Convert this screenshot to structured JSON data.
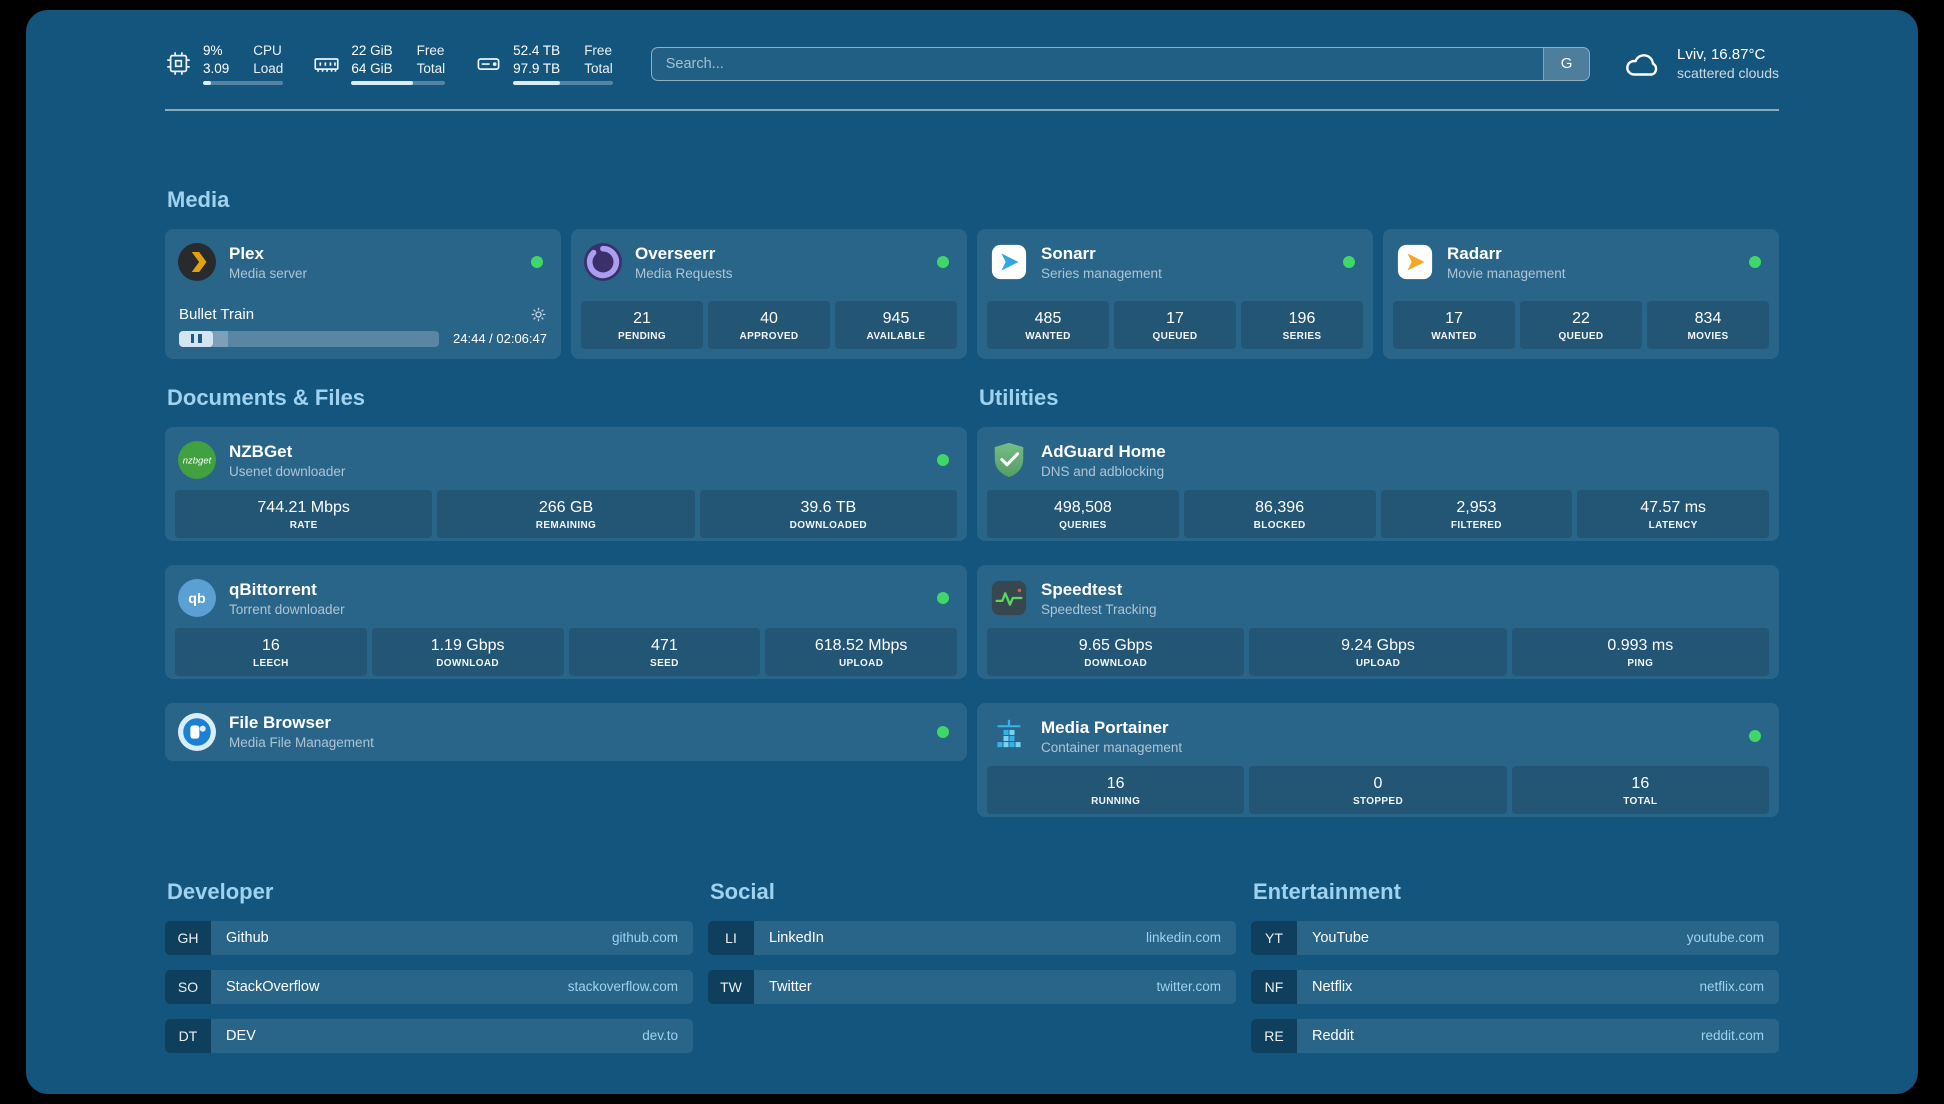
{
  "theme": {
    "background": "#14557e",
    "heading_color": "#9fd2ef",
    "status_green": "#3fd768",
    "link_color": "#9fd2ef"
  },
  "header": {
    "monitors": [
      {
        "icon": "cpu-icon",
        "rows": [
          {
            "value": "9%",
            "label": "CPU"
          },
          {
            "value": "3.09",
            "label": "Load"
          }
        ],
        "progress": 10
      },
      {
        "icon": "memory-icon",
        "rows": [
          {
            "value": "22 GiB",
            "label": "Free"
          },
          {
            "value": "64 GiB",
            "label": "Total"
          }
        ],
        "progress": 66
      },
      {
        "icon": "disk-icon",
        "rows": [
          {
            "value": "52.4 TB",
            "label": "Free"
          },
          {
            "value": "97.9 TB",
            "label": "Total"
          }
        ],
        "progress": 47
      }
    ],
    "search": {
      "placeholder": "Search...",
      "button_label": "G"
    },
    "weather": {
      "icon": "cloud-icon",
      "location": "Lviv, 16.87°C",
      "condition": "scattered clouds"
    }
  },
  "sections": {
    "media": {
      "title": "Media",
      "plex": {
        "icon": "plex-icon",
        "name": "Plex",
        "desc": "Media server",
        "status": "online",
        "now_playing": "Bullet Train",
        "elapsed": "24:44 / 02:06:47",
        "progress": 19
      },
      "overseerr": {
        "icon": "overseerr-icon",
        "name": "Overseerr",
        "desc": "Media Requests",
        "status": "online",
        "stats": [
          {
            "value": "21",
            "label": "PENDING"
          },
          {
            "value": "40",
            "label": "APPROVED"
          },
          {
            "value": "945",
            "label": "AVAILABLE"
          }
        ]
      },
      "sonarr": {
        "icon": "sonarr-icon",
        "name": "Sonarr",
        "desc": "Series management",
        "status": "online",
        "stats": [
          {
            "value": "485",
            "label": "WANTED"
          },
          {
            "value": "17",
            "label": "QUEUED"
          },
          {
            "value": "196",
            "label": "SERIES"
          }
        ]
      },
      "radarr": {
        "icon": "radarr-icon",
        "name": "Radarr",
        "desc": "Movie management",
        "status": "online",
        "stats": [
          {
            "value": "17",
            "label": "WANTED"
          },
          {
            "value": "22",
            "label": "QUEUED"
          },
          {
            "value": "834",
            "label": "MOVIES"
          }
        ]
      }
    },
    "documents": {
      "title": "Documents & Files",
      "nzbget": {
        "icon": "nzbget-icon",
        "name": "NZBGet",
        "desc": "Usenet downloader",
        "status": "online",
        "stats": [
          {
            "value": "744.21 Mbps",
            "label": "RATE"
          },
          {
            "value": "266 GB",
            "label": "REMAINING"
          },
          {
            "value": "39.6 TB",
            "label": "DOWNLOADED"
          }
        ]
      },
      "qbittorrent": {
        "icon": "qbittorrent-icon",
        "name": "qBittorrent",
        "desc": "Torrent downloader",
        "status": "online",
        "stats": [
          {
            "value": "16",
            "label": "LEECH"
          },
          {
            "value": "1.19 Gbps",
            "label": "DOWNLOAD"
          },
          {
            "value": "471",
            "label": "SEED"
          },
          {
            "value": "618.52 Mbps",
            "label": "UPLOAD"
          }
        ]
      },
      "filebrowser": {
        "icon": "filebrowser-icon",
        "name": "File Browser",
        "desc": "Media File Management",
        "status": "online"
      }
    },
    "utilities": {
      "title": "Utilities",
      "adguard": {
        "icon": "adguard-icon",
        "name": "AdGuard Home",
        "desc": "DNS and adblocking",
        "stats": [
          {
            "value": "498,508",
            "label": "QUERIES"
          },
          {
            "value": "86,396",
            "label": "BLOCKED"
          },
          {
            "value": "2,953",
            "label": "FILTERED"
          },
          {
            "value": "47.57 ms",
            "label": "LATENCY"
          }
        ]
      },
      "speedtest": {
        "icon": "speedtest-icon",
        "name": "Speedtest",
        "desc": "Speedtest Tracking",
        "stats": [
          {
            "value": "9.65 Gbps",
            "label": "DOWNLOAD"
          },
          {
            "value": "9.24 Gbps",
            "label": "UPLOAD"
          },
          {
            "value": "0.993 ms",
            "label": "PING"
          }
        ]
      },
      "portainer": {
        "icon": "portainer-icon",
        "name": "Media Portainer",
        "desc": "Container management",
        "status": "online",
        "stats": [
          {
            "value": "16",
            "label": "RUNNING"
          },
          {
            "value": "0",
            "label": "STOPPED"
          },
          {
            "value": "16",
            "label": "TOTAL"
          }
        ]
      }
    }
  },
  "bookmarks": [
    {
      "title": "Developer",
      "items": [
        {
          "abbr": "GH",
          "name": "Github",
          "url": "github.com"
        },
        {
          "abbr": "SO",
          "name": "StackOverflow",
          "url": "stackoverflow.com"
        },
        {
          "abbr": "DT",
          "name": "DEV",
          "url": "dev.to"
        }
      ]
    },
    {
      "title": "Social",
      "items": [
        {
          "abbr": "LI",
          "name": "LinkedIn",
          "url": "linkedin.com"
        },
        {
          "abbr": "TW",
          "name": "Twitter",
          "url": "twitter.com"
        }
      ]
    },
    {
      "title": "Entertainment",
      "items": [
        {
          "abbr": "YT",
          "name": "YouTube",
          "url": "youtube.com"
        },
        {
          "abbr": "NF",
          "name": "Netflix",
          "url": "netflix.com"
        },
        {
          "abbr": "RE",
          "name": "Reddit",
          "url": "reddit.com"
        }
      ]
    }
  ]
}
